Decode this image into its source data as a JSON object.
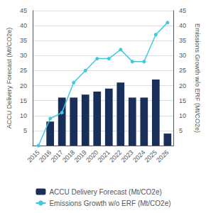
{
  "chart_data": {
    "type": "bar",
    "categories": [
      "2015",
      "2016",
      "2017",
      "2018",
      "2019",
      "2020",
      "2021",
      "2022",
      "2023",
      "2024",
      "2025",
      "2026"
    ],
    "series": [
      {
        "name": "ACCU Delivery Forecast (Mt/CO2e)",
        "type": "bar",
        "color": "#1a2e5a",
        "values": [
          0,
          8,
          16,
          16,
          17,
          18,
          19,
          21,
          16,
          16,
          22,
          4
        ]
      },
      {
        "name": "Emissions Growth w/o ERF (Mt/CO2e)",
        "type": "line",
        "axis": "y2",
        "color": "#40c8e0",
        "marker": "circle",
        "values": [
          0,
          9,
          11,
          21,
          25,
          29,
          29,
          32,
          28,
          28,
          37,
          41
        ]
      }
    ],
    "ylabel": "ACCU Delivery Forecast (Mt/CO2e)",
    "y2label": "Emissions Growth w/o ERF (Mt/CO2e)",
    "ylim": [
      0,
      45
    ],
    "yticks": [
      5,
      10,
      15,
      20,
      25,
      30,
      35,
      40,
      45
    ],
    "y2lim": [
      0,
      45
    ],
    "y2ticks": [
      5,
      10,
      15,
      20,
      25,
      30,
      35,
      40,
      45
    ],
    "grid": true,
    "legend": "bottom"
  }
}
